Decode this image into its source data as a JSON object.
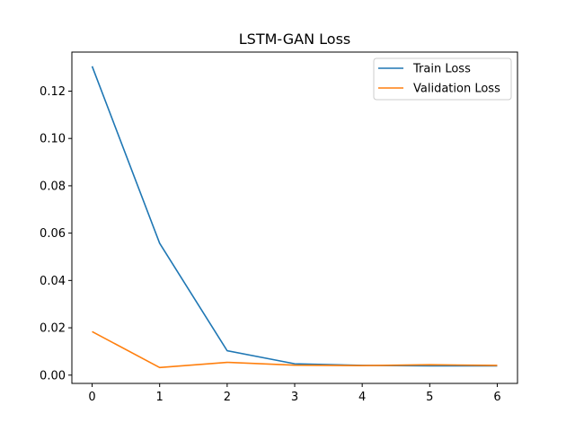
{
  "chart_data": {
    "type": "line",
    "title": "LSTM-GAN Loss",
    "xlabel": "",
    "ylabel": "",
    "x": [
      0,
      1,
      2,
      3,
      4,
      5,
      6
    ],
    "xlim": [
      -0.3,
      6.3
    ],
    "ylim": [
      -0.0035,
      0.1365
    ],
    "x_ticks": [
      0,
      1,
      2,
      3,
      4,
      5,
      6
    ],
    "x_tick_labels": [
      "0",
      "1",
      "2",
      "3",
      "4",
      "5",
      "6"
    ],
    "y_ticks": [
      0.0,
      0.02,
      0.04,
      0.06,
      0.08,
      0.1,
      0.12
    ],
    "y_tick_labels": [
      "0.00",
      "0.02",
      "0.04",
      "0.06",
      "0.08",
      "0.10",
      "0.12"
    ],
    "grid": false,
    "legend_position": "top-right",
    "series": [
      {
        "name": "Train Loss",
        "color": "#1f77b4",
        "values": [
          0.1305,
          0.0557,
          0.0103,
          0.0048,
          0.0041,
          0.0039,
          0.0039
        ]
      },
      {
        "name": "Validation Loss",
        "color": "#ff7f0e",
        "values": [
          0.0184,
          0.0032,
          0.0054,
          0.0042,
          0.004,
          0.0044,
          0.0041
        ]
      }
    ]
  }
}
